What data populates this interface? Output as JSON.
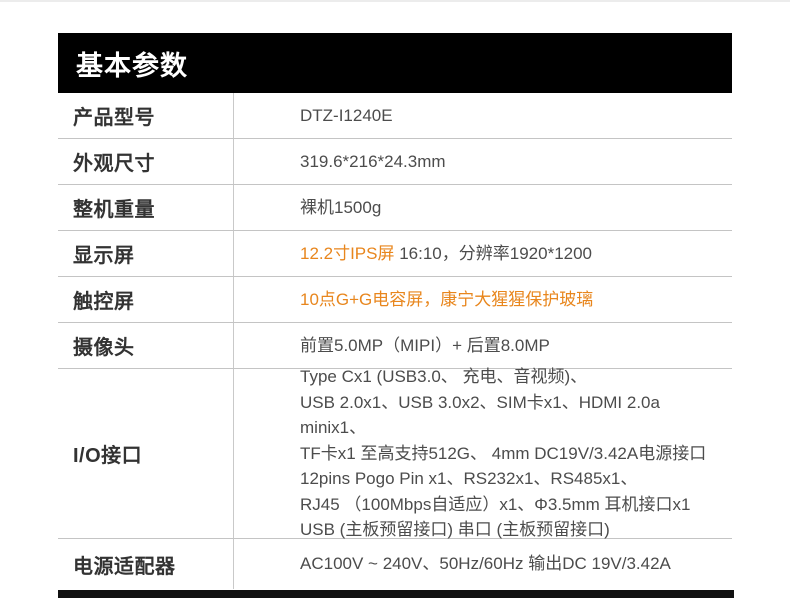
{
  "colors": {
    "accent_orange": "#e8861d",
    "header_bg": "#000000",
    "label_text": "#333333",
    "value_text": "#4c4c4c",
    "grid_line": "#c4c4c4"
  },
  "header": {
    "title": "基本参数"
  },
  "table": {
    "rows": [
      {
        "label": "产品型号",
        "lines": [
          {
            "segments": [
              {
                "text": "DTZ-I1240E"
              }
            ]
          }
        ]
      },
      {
        "label": "外观尺寸",
        "lines": [
          {
            "segments": [
              {
                "text": "319.6*216*24.3mm"
              }
            ]
          }
        ]
      },
      {
        "label": "整机重量",
        "lines": [
          {
            "segments": [
              {
                "text": "裸机1500g"
              }
            ]
          }
        ]
      },
      {
        "label": "显示屏",
        "lines": [
          {
            "segments": [
              {
                "text": "12.2寸IPS屏 ",
                "orange": true
              },
              {
                "text": "16:10，分辨率1920*1200"
              }
            ]
          }
        ]
      },
      {
        "label": "触控屏",
        "lines": [
          {
            "segments": [
              {
                "text": "10点G+G电容屏，康宁大猩猩保护玻璃",
                "orange": true
              }
            ]
          }
        ]
      },
      {
        "label": "摄像头",
        "lines": [
          {
            "segments": [
              {
                "text": "前置5.0MP（MIPI）+ 后置8.0MP"
              }
            ]
          }
        ]
      },
      {
        "label": "I/O接口",
        "tall": true,
        "lines": [
          {
            "segments": [
              {
                "text": "Type Cx1 (USB3.0、 充电、音视频)、"
              }
            ]
          },
          {
            "segments": [
              {
                "text": "USB 2.0x1、USB 3.0x2、SIM卡x1、HDMI 2.0a minix1、"
              }
            ]
          },
          {
            "segments": [
              {
                "text": "TF卡x1 至高支持512G、 4mm DC19V/3.42A电源接口"
              }
            ]
          },
          {
            "segments": [
              {
                "text": "12pins Pogo Pin x1、RS232x1、RS485x1、"
              }
            ]
          },
          {
            "segments": [
              {
                "text": "RJ45 （100Mbps自适应）x1、Φ3.5mm 耳机接口x1"
              }
            ]
          },
          {
            "segments": [
              {
                "text": "USB (主板预留接口) 串口 (主板预留接口)"
              }
            ]
          }
        ]
      },
      {
        "label": "电源适配器",
        "last": true,
        "lines": [
          {
            "segments": [
              {
                "text": "AC100V ~ 240V、50Hz/60Hz 输出DC 19V/3.42A"
              }
            ]
          }
        ]
      }
    ]
  }
}
